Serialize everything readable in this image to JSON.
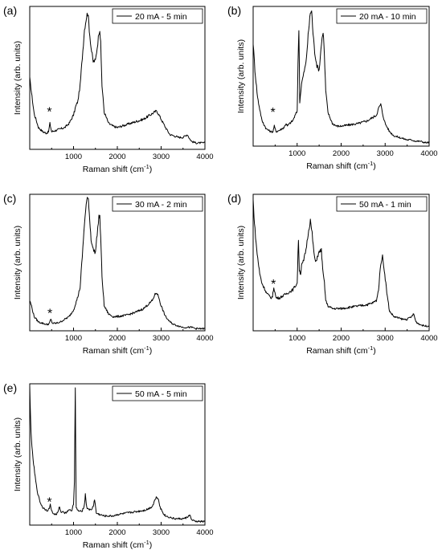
{
  "chart_data": [
    {
      "type": "line",
      "panel": "(a)",
      "legend": "20 mA - 5 min",
      "xlabel": "Raman shift (cm",
      "xlabel_sup": "-1",
      "xlabel_end": ")",
      "ylabel": "Intensity (arb. units)",
      "xlim": [
        0,
        4000
      ],
      "xticks": [
        "1000",
        "2000",
        "3000",
        "4000"
      ],
      "annotation": "*",
      "annotation_x": 450,
      "annotation_y": 0.22,
      "series": [
        {
          "x": [
            0,
            40,
            100,
            200,
            300,
            380,
            430,
            460,
            500,
            600,
            700,
            800,
            900,
            1000,
            1050,
            1100,
            1150,
            1200,
            1250,
            1300,
            1330,
            1360,
            1400,
            1450,
            1500,
            1540,
            1580,
            1600,
            1620,
            1650,
            1700,
            1800,
            1900,
            2000,
            2100,
            2200,
            2300,
            2400,
            2500,
            2600,
            2700,
            2800,
            2850,
            2900,
            2950,
            3000,
            3100,
            3200,
            3300,
            3400,
            3500,
            3600,
            3650,
            3700,
            3800,
            3900,
            4000
          ],
          "y": [
            0.5,
            0.4,
            0.25,
            0.15,
            0.12,
            0.11,
            0.12,
            0.18,
            0.12,
            0.13,
            0.14,
            0.15,
            0.18,
            0.24,
            0.3,
            0.34,
            0.45,
            0.65,
            0.85,
            0.95,
            0.97,
            0.85,
            0.72,
            0.62,
            0.63,
            0.72,
            0.83,
            0.85,
            0.75,
            0.45,
            0.26,
            0.18,
            0.16,
            0.15,
            0.16,
            0.17,
            0.18,
            0.19,
            0.2,
            0.21,
            0.23,
            0.25,
            0.26,
            0.27,
            0.24,
            0.21,
            0.15,
            0.1,
            0.09,
            0.08,
            0.08,
            0.1,
            0.07,
            0.05,
            0.04,
            0.04,
            0.04
          ]
        }
      ]
    },
    {
      "type": "line",
      "panel": "(b)",
      "legend": "20 mA - 10 min",
      "xlabel": "Raman shift (cm",
      "xlabel_sup": "-1",
      "xlabel_end": ")",
      "ylabel": "Intensity (arb. units)",
      "xlim": [
        0,
        4000
      ],
      "xticks": [
        "1000",
        "2000",
        "3000",
        "4000"
      ],
      "annotation": "*",
      "annotation_x": 450,
      "annotation_y": 0.2,
      "series": [
        {
          "x": [
            0,
            40,
            100,
            200,
            300,
            400,
            450,
            480,
            520,
            600,
            700,
            750,
            780,
            800,
            900,
            1000,
            1020,
            1040,
            1060,
            1100,
            1200,
            1250,
            1300,
            1330,
            1360,
            1400,
            1450,
            1500,
            1540,
            1580,
            1600,
            1620,
            1650,
            1700,
            1800,
            1900,
            2000,
            2200,
            2400,
            2600,
            2700,
            2800,
            2850,
            2900,
            2950,
            3000,
            3100,
            3200,
            3300,
            3400,
            3500,
            3600,
            3700,
            3800,
            3900,
            4000
          ],
          "y": [
            0.75,
            0.55,
            0.35,
            0.18,
            0.12,
            0.1,
            0.1,
            0.14,
            0.1,
            0.11,
            0.13,
            0.16,
            0.14,
            0.15,
            0.18,
            0.25,
            0.6,
            0.85,
            0.32,
            0.45,
            0.6,
            0.8,
            0.97,
            0.98,
            0.82,
            0.68,
            0.58,
            0.55,
            0.7,
            0.82,
            0.8,
            0.65,
            0.4,
            0.24,
            0.16,
            0.14,
            0.14,
            0.15,
            0.16,
            0.18,
            0.2,
            0.22,
            0.27,
            0.3,
            0.22,
            0.16,
            0.1,
            0.07,
            0.06,
            0.05,
            0.04,
            0.04,
            0.03,
            0.03,
            0.02,
            0.02
          ]
        }
      ]
    },
    {
      "type": "line",
      "panel": "(c)",
      "legend": "30 mA - 2 min",
      "xlabel": "Raman shift (cm",
      "xlabel_sup": "-1",
      "xlabel_end": ")",
      "ylabel": "Intensity (arb. units)",
      "xlim": [
        0,
        4000
      ],
      "xticks": [
        "1000",
        "2000",
        "3000",
        "4000"
      ],
      "annotation": "*",
      "annotation_x": 460,
      "annotation_y": 0.08,
      "series": [
        {
          "x": [
            0,
            40,
            100,
            200,
            300,
            400,
            450,
            480,
            520,
            600,
            700,
            800,
            900,
            1000,
            1050,
            1100,
            1150,
            1200,
            1250,
            1300,
            1340,
            1370,
            1400,
            1450,
            1500,
            1540,
            1580,
            1600,
            1620,
            1650,
            1700,
            1800,
            1900,
            2000,
            2200,
            2400,
            2600,
            2700,
            2800,
            2850,
            2900,
            2950,
            3000,
            3100,
            3200,
            3300,
            3400,
            3500,
            3600,
            3700,
            3800,
            3900,
            4000
          ],
          "y": [
            0.22,
            0.18,
            0.1,
            0.06,
            0.05,
            0.04,
            0.05,
            0.08,
            0.05,
            0.05,
            0.06,
            0.08,
            0.1,
            0.15,
            0.2,
            0.25,
            0.32,
            0.55,
            0.8,
            0.97,
            0.98,
            0.82,
            0.68,
            0.6,
            0.58,
            0.72,
            0.85,
            0.84,
            0.7,
            0.4,
            0.18,
            0.12,
            0.1,
            0.1,
            0.11,
            0.13,
            0.16,
            0.19,
            0.22,
            0.26,
            0.28,
            0.24,
            0.18,
            0.1,
            0.06,
            0.04,
            0.03,
            0.02,
            0.02,
            0.02,
            0.01,
            0.01,
            0.01
          ]
        }
      ]
    },
    {
      "type": "line",
      "panel": "(d)",
      "legend": "50 mA - 1 min",
      "xlabel": "Raman shift (cm",
      "xlabel_sup": "-1",
      "xlabel_end": ")",
      "ylabel": "Intensity (arb. units)",
      "xlim": [
        0,
        4000
      ],
      "xticks": [
        "1000",
        "2000",
        "3000",
        "4000"
      ],
      "annotation": "*",
      "annotation_x": 460,
      "annotation_y": 0.3,
      "series": [
        {
          "x": [
            0,
            30,
            80,
            150,
            200,
            300,
            400,
            440,
            470,
            520,
            600,
            700,
            800,
            900,
            1000,
            1030,
            1050,
            1080,
            1100,
            1150,
            1200,
            1250,
            1300,
            1340,
            1380,
            1420,
            1460,
            1500,
            1550,
            1580,
            1620,
            1650,
            1700,
            1800,
            1900,
            2000,
            2200,
            2400,
            2600,
            2700,
            2800,
            2850,
            2900,
            2940,
            2980,
            3050,
            3100,
            3200,
            3300,
            3400,
            3500,
            3600,
            3650,
            3700,
            3800,
            3900,
            4000
          ],
          "y": [
            0.97,
            0.8,
            0.6,
            0.42,
            0.35,
            0.28,
            0.24,
            0.25,
            0.32,
            0.24,
            0.24,
            0.26,
            0.28,
            0.3,
            0.35,
            0.68,
            0.45,
            0.42,
            0.48,
            0.52,
            0.6,
            0.72,
            0.82,
            0.72,
            0.58,
            0.5,
            0.55,
            0.58,
            0.6,
            0.45,
            0.35,
            0.22,
            0.18,
            0.16,
            0.16,
            0.16,
            0.17,
            0.18,
            0.19,
            0.2,
            0.22,
            0.3,
            0.5,
            0.55,
            0.45,
            0.25,
            0.14,
            0.1,
            0.09,
            0.08,
            0.08,
            0.1,
            0.12,
            0.06,
            0.04,
            0.03,
            0.03
          ]
        }
      ]
    },
    {
      "type": "line",
      "panel": "(e)",
      "legend": "50 mA - 5 min",
      "xlabel": "Raman shift (cm",
      "xlabel_sup": "-1",
      "xlabel_end": ")",
      "ylabel": "Intensity (arb. units)",
      "xlim": [
        0,
        4000
      ],
      "xticks": [
        "1000",
        "2000",
        "3000",
        "4000"
      ],
      "annotation": "*",
      "annotation_x": 450,
      "annotation_y": 0.12,
      "series": [
        {
          "x": [
            0,
            20,
            50,
            100,
            150,
            200,
            250,
            300,
            400,
            440,
            470,
            520,
            600,
            650,
            680,
            720,
            760,
            800,
            850,
            900,
            950,
            1000,
            1020,
            1040,
            1060,
            1100,
            1150,
            1200,
            1250,
            1270,
            1300,
            1350,
            1400,
            1450,
            1480,
            1520,
            1600,
            1700,
            1800,
            1900,
            2000,
            2200,
            2400,
            2600,
            2700,
            2800,
            2850,
            2900,
            2940,
            2980,
            3050,
            3100,
            3200,
            3300,
            3400,
            3500,
            3600,
            3650,
            3700,
            3800,
            3900,
            4000
          ],
          "y": [
            1.0,
            0.75,
            0.55,
            0.4,
            0.28,
            0.2,
            0.15,
            0.12,
            0.1,
            0.11,
            0.14,
            0.08,
            0.07,
            0.09,
            0.13,
            0.08,
            0.1,
            0.08,
            0.09,
            0.11,
            0.09,
            0.15,
            0.3,
            0.97,
            0.12,
            0.1,
            0.09,
            0.1,
            0.14,
            0.22,
            0.12,
            0.11,
            0.1,
            0.13,
            0.18,
            0.08,
            0.07,
            0.06,
            0.06,
            0.06,
            0.07,
            0.08,
            0.09,
            0.1,
            0.11,
            0.13,
            0.17,
            0.2,
            0.18,
            0.12,
            0.08,
            0.06,
            0.05,
            0.04,
            0.04,
            0.04,
            0.05,
            0.07,
            0.03,
            0.02,
            0.02,
            0.02
          ]
        }
      ]
    }
  ]
}
